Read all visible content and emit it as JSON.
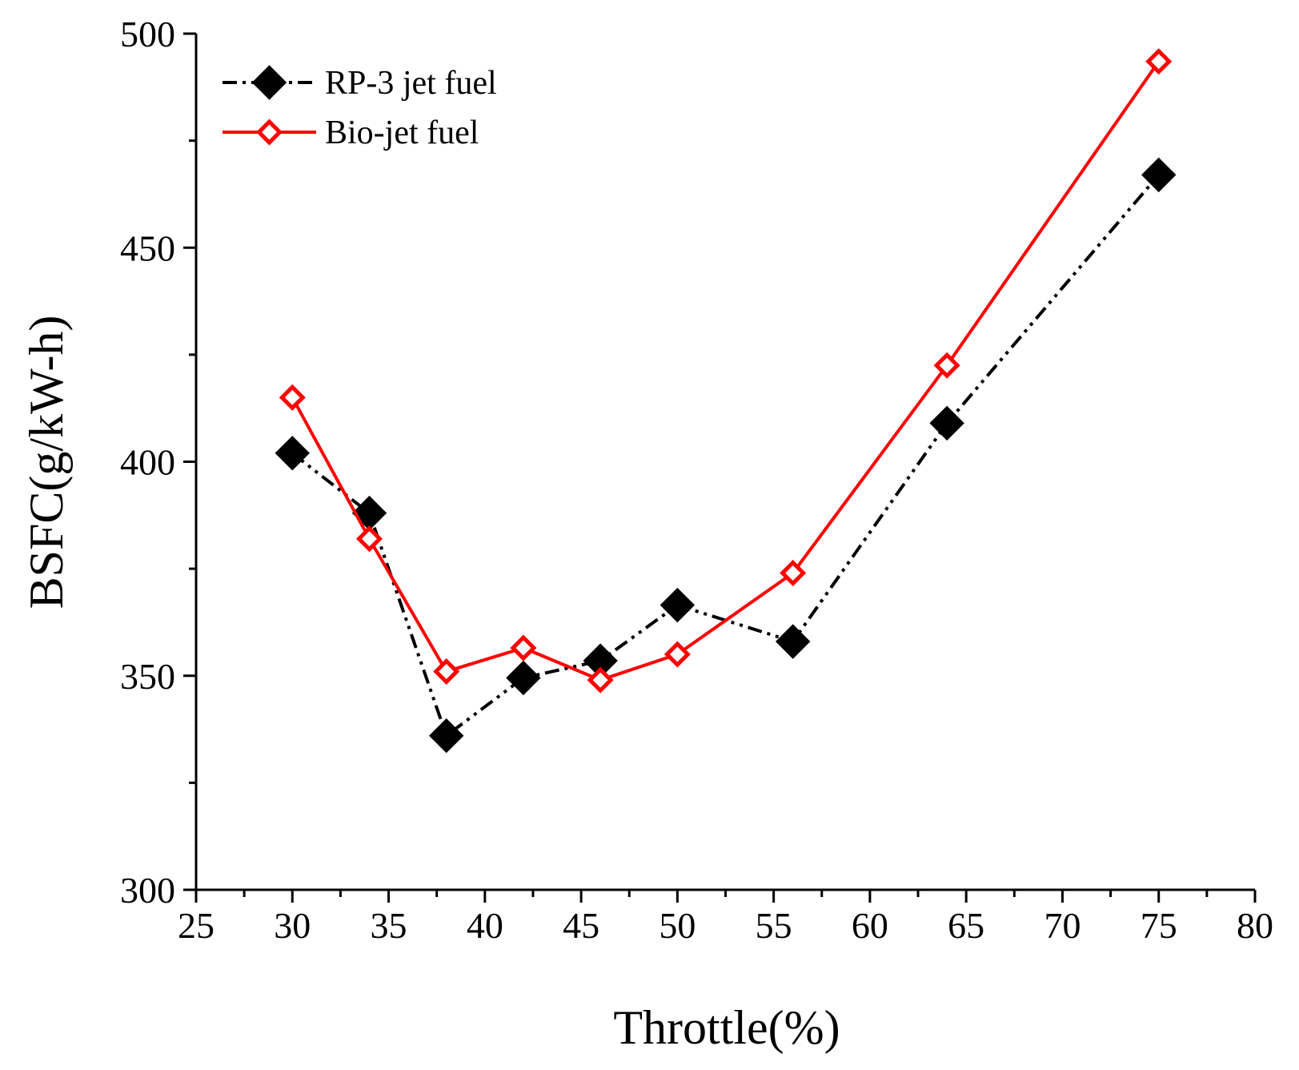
{
  "chart_data": {
    "type": "line",
    "title": "",
    "xlabel": "Throttle(%)",
    "ylabel": "BSFC(g/kW-h)",
    "xlim": [
      25,
      80
    ],
    "ylim": [
      300,
      500
    ],
    "xticks": [
      25,
      30,
      35,
      40,
      45,
      50,
      55,
      60,
      65,
      70,
      75,
      80
    ],
    "yticks": [
      300,
      350,
      400,
      450,
      500
    ],
    "grid": false,
    "legend_position": "top-left",
    "series": [
      {
        "name": "RP-3 jet fuel",
        "color": "#000000",
        "line_style": "dash-dot-dot",
        "marker": "filled-diamond",
        "x": [
          30,
          34,
          38,
          42,
          46,
          50,
          56,
          64,
          75
        ],
        "y": [
          402,
          388,
          336,
          349.5,
          353.5,
          366.5,
          358,
          409,
          467
        ]
      },
      {
        "name": "Bio-jet fuel",
        "color": "#ff0000",
        "line_style": "solid",
        "marker": "open-diamond",
        "x": [
          30,
          34,
          38,
          42,
          46,
          50,
          56,
          64,
          75
        ],
        "y": [
          415,
          382,
          351,
          356.5,
          349,
          355,
          374,
          422.5,
          493.5
        ]
      }
    ]
  }
}
